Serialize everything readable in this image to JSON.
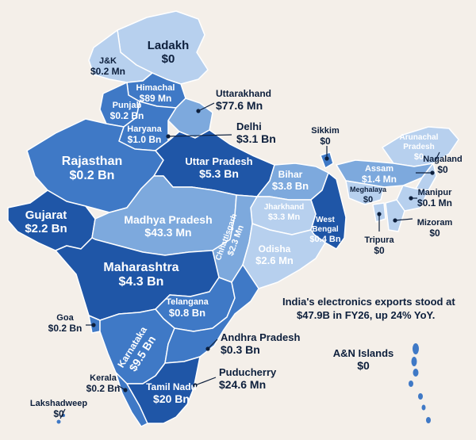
{
  "colors": {
    "background": "#f4efe9",
    "dark": "#1f56a7",
    "medium": "#3f79c6",
    "light": "#7da9dd",
    "pale": "#b7d0ee",
    "text_dark": "#0d1f3c",
    "text_light": "#ffffff"
  },
  "headline": {
    "line1": "India's electronics exports stood at",
    "line2": "$47.9B in FY26, up 24% YoY."
  },
  "states": [
    {
      "key": "ladakh",
      "name": "Ladakh",
      "value": "$0"
    },
    {
      "key": "jk",
      "name": "J&K",
      "value": "$0.2 Mn"
    },
    {
      "key": "himachal",
      "name": "Himachal",
      "value": "$89 Mn"
    },
    {
      "key": "punjab",
      "name": "Punjab",
      "value": "$0.2 Bn"
    },
    {
      "key": "uttarakhand",
      "name": "Uttarakhand",
      "value": "$77.6 Mn"
    },
    {
      "key": "haryana",
      "name": "Haryana",
      "value": "$1.0 Bn"
    },
    {
      "key": "delhi",
      "name": "Delhi",
      "value": "$3.1 Bn"
    },
    {
      "key": "rajasthan",
      "name": "Rajasthan",
      "value": "$0.2 Bn"
    },
    {
      "key": "uttar_pradesh",
      "name": "Uttar Pradesh",
      "value": "$5.3 Bn"
    },
    {
      "key": "bihar",
      "name": "Bihar",
      "value": "$3.8 Bn"
    },
    {
      "key": "sikkim",
      "name": "Sikkim",
      "value": "$0"
    },
    {
      "key": "arunachal",
      "name": "Arunachal Pradesh",
      "value": "$0"
    },
    {
      "key": "assam",
      "name": "Assam",
      "value": "$1.4 Mn"
    },
    {
      "key": "nagaland",
      "name": "Nagaland",
      "value": "$0"
    },
    {
      "key": "meghalaya",
      "name": "Meghalaya",
      "value": "$0"
    },
    {
      "key": "manipur",
      "name": "Manipur",
      "value": "$0.1 Mn"
    },
    {
      "key": "mizoram",
      "name": "Mizoram",
      "value": "$0"
    },
    {
      "key": "tripura",
      "name": "Tripura",
      "value": "$0"
    },
    {
      "key": "gujarat",
      "name": "Gujarat",
      "value": "$2.2 Bn"
    },
    {
      "key": "madhya_pradesh",
      "name": "Madhya Pradesh",
      "value": "$43.3 Mn"
    },
    {
      "key": "jharkhand",
      "name": "Jharkhand",
      "value": "$3.3 Mn"
    },
    {
      "key": "west_bengal",
      "name": "West Bengal",
      "value": "$0.4 Bn"
    },
    {
      "key": "chhattisgarh",
      "name": "Chhattisgarh",
      "value": "$2.3 Mn"
    },
    {
      "key": "odisha",
      "name": "Odisha",
      "value": "$2.6 Mn"
    },
    {
      "key": "maharashtra",
      "name": "Maharashtra",
      "value": "$4.3 Bn"
    },
    {
      "key": "telangana",
      "name": "Telangana",
      "value": "$0.8 Bn"
    },
    {
      "key": "goa",
      "name": "Goa",
      "value": "$0.2 Bn"
    },
    {
      "key": "karnataka",
      "name": "Karnataka",
      "value": "$9.5 Bn"
    },
    {
      "key": "andhra_pradesh",
      "name": "Andhra Pradesh",
      "value": "$0.3 Bn"
    },
    {
      "key": "an_islands",
      "name": "A&N Islands",
      "value": "$0"
    },
    {
      "key": "kerala",
      "name": "Kerala",
      "value": "$0.2 Bn"
    },
    {
      "key": "puducherry",
      "name": "Puducherry",
      "value": "$24.6 Mn"
    },
    {
      "key": "tamil_nadu",
      "name": "Tamil Nadu",
      "value": "$20 Bn"
    },
    {
      "key": "lakshadweep",
      "name": "Lakshadweep",
      "value": "$0"
    }
  ]
}
